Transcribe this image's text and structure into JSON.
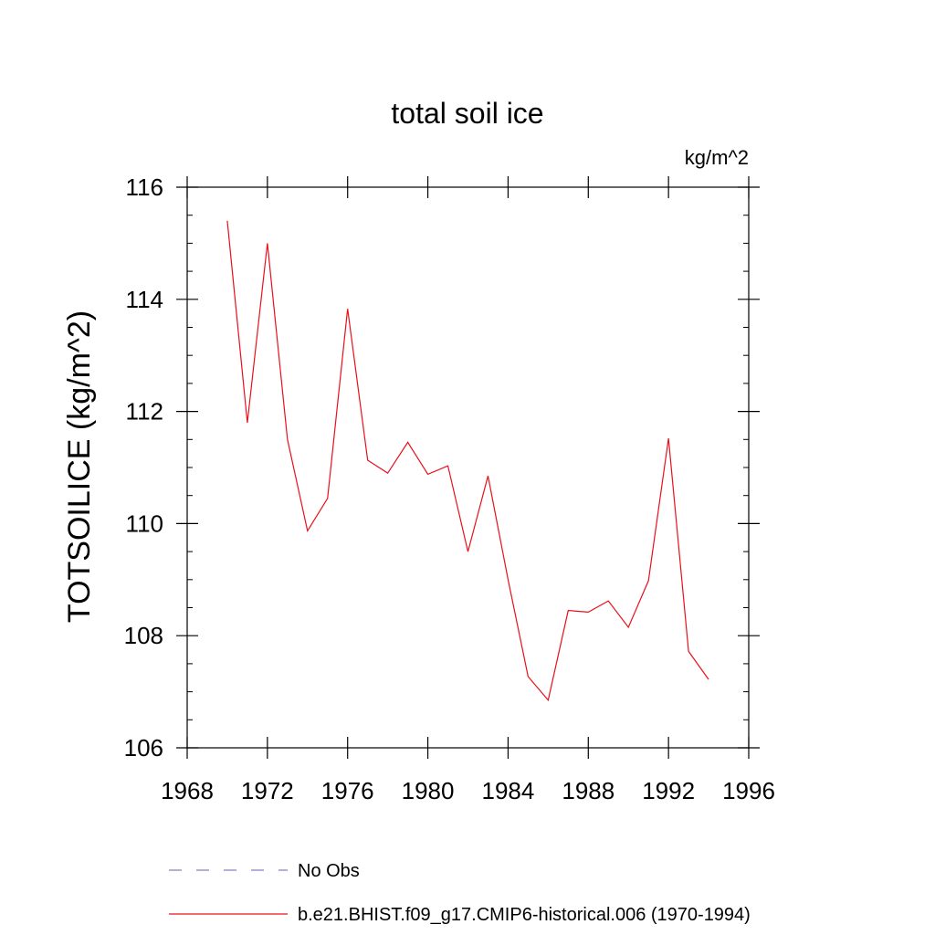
{
  "chart_data": {
    "type": "line",
    "title": "total soil ice",
    "units_label": "kg/m^2",
    "ylabel": "TOTSOILICE  (kg/m^2)",
    "xlabel": "",
    "xlim": [
      1968,
      1996
    ],
    "ylim": [
      106,
      116
    ],
    "xticks": [
      1968,
      1972,
      1976,
      1980,
      1984,
      1988,
      1992,
      1996
    ],
    "yticks": [
      106,
      108,
      110,
      112,
      114,
      116
    ],
    "grid": false,
    "legend_placement": "bottom",
    "series": [
      {
        "name": "No Obs",
        "style": "dashed",
        "color": "#8080c0",
        "x": [],
        "y": []
      },
      {
        "name": "b.e21.BHIST.f09_g17.CMIP6-historical.006 (1970-1994)",
        "style": "solid",
        "color": "#e8101a",
        "x": [
          1970,
          1971,
          1972,
          1973,
          1974,
          1975,
          1976,
          1977,
          1978,
          1979,
          1980,
          1981,
          1982,
          1983,
          1984,
          1985,
          1986,
          1987,
          1988,
          1989,
          1990,
          1991,
          1992,
          1993,
          1994
        ],
        "y": [
          115.4,
          111.8,
          115.0,
          111.5,
          109.87,
          110.45,
          113.83,
          111.13,
          110.9,
          111.45,
          110.88,
          111.03,
          109.5,
          110.85,
          109.0,
          107.27,
          106.85,
          108.45,
          108.42,
          108.62,
          108.15,
          108.98,
          111.52,
          107.72,
          107.22
        ]
      }
    ]
  }
}
